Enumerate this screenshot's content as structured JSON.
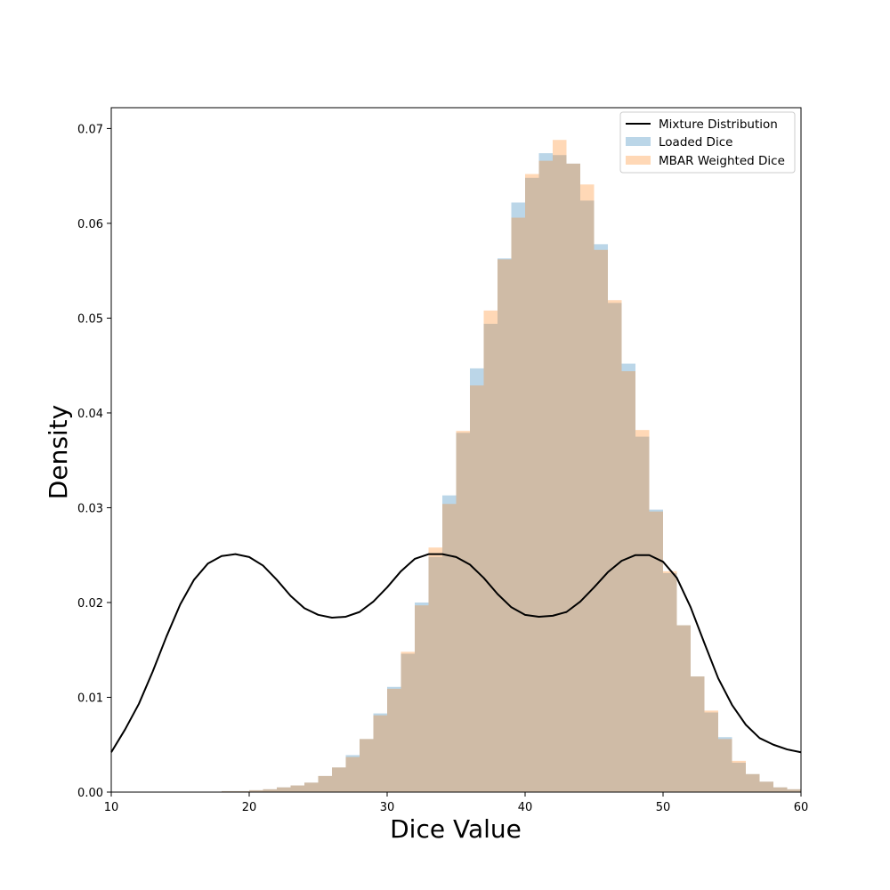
{
  "chart_data": {
    "type": "bar",
    "xlabel": "Dice Value",
    "ylabel": "Density",
    "xlim": [
      10,
      60
    ],
    "ylim": [
      0,
      0.0722
    ],
    "xticks": [
      10,
      20,
      30,
      40,
      50,
      60
    ],
    "yticks": [
      0.0,
      0.01,
      0.02,
      0.03,
      0.04,
      0.05,
      0.06,
      0.07
    ],
    "ytick_labels": [
      "0.00",
      "0.01",
      "0.02",
      "0.03",
      "0.04",
      "0.05",
      "0.06",
      "0.07"
    ],
    "grid": false,
    "legend_position": "top-right",
    "bin_edges": [
      18,
      19,
      20,
      21,
      22,
      23,
      24,
      25,
      26,
      27,
      28,
      29,
      30,
      31,
      32,
      33,
      34,
      35,
      36,
      37,
      38,
      39,
      40,
      41,
      42,
      43,
      44,
      45,
      46,
      47,
      48,
      49,
      50,
      51,
      52,
      53,
      54,
      55,
      56,
      57,
      58,
      59,
      60
    ],
    "series": [
      {
        "name": "Mixture Distribution",
        "kind": "line",
        "color": "#000000",
        "x": [
          10,
          11,
          12,
          13,
          14,
          15,
          16,
          17,
          18,
          19,
          20,
          21,
          22,
          23,
          24,
          25,
          26,
          27,
          28,
          29,
          30,
          31,
          32,
          33,
          34,
          35,
          36,
          37,
          38,
          39,
          40,
          41,
          42,
          43,
          44,
          45,
          46,
          47,
          48,
          49,
          50,
          51,
          52,
          53,
          54,
          55,
          56,
          57,
          58,
          59,
          60
        ],
        "y": [
          0.0042,
          0.0066,
          0.0093,
          0.0127,
          0.0164,
          0.0198,
          0.0224,
          0.0241,
          0.0249,
          0.0251,
          0.0248,
          0.0239,
          0.0224,
          0.0207,
          0.0194,
          0.0187,
          0.0184,
          0.0185,
          0.019,
          0.0201,
          0.0216,
          0.0233,
          0.0246,
          0.0251,
          0.0251,
          0.0248,
          0.024,
          0.0226,
          0.0209,
          0.0195,
          0.0187,
          0.0185,
          0.0186,
          0.019,
          0.0201,
          0.0216,
          0.0232,
          0.0244,
          0.025,
          0.025,
          0.0243,
          0.0226,
          0.0195,
          0.0157,
          0.012,
          0.0092,
          0.0071,
          0.0057,
          0.005,
          0.0045,
          0.0042
        ]
      },
      {
        "name": "Loaded Dice",
        "kind": "histogram",
        "color": "#1f77b4",
        "values": [
          0.0001,
          0.0001,
          0.0002,
          0.0003,
          0.0005,
          0.0007,
          0.001,
          0.0017,
          0.0026,
          0.0039,
          0.0056,
          0.0083,
          0.0111,
          0.0146,
          0.02,
          0.0248,
          0.0313,
          0.0379,
          0.0447,
          0.0494,
          0.0563,
          0.0622,
          0.0648,
          0.0674,
          0.0672,
          0.0663,
          0.0624,
          0.0578,
          0.0516,
          0.0452,
          0.0375,
          0.0298,
          0.0231,
          0.0176,
          0.0122,
          0.0084,
          0.0058,
          0.0031,
          0.0019,
          0.0011,
          0.0005,
          0.0003
        ]
      },
      {
        "name": "MBAR Weighted Dice",
        "kind": "histogram",
        "color": "#ff7f0e",
        "values": [
          0.0001,
          0.0001,
          0.0002,
          0.0003,
          0.0005,
          0.0007,
          0.001,
          0.0017,
          0.0026,
          0.0037,
          0.0056,
          0.0081,
          0.0109,
          0.0148,
          0.0197,
          0.0258,
          0.0304,
          0.0381,
          0.0429,
          0.0508,
          0.0562,
          0.0606,
          0.0652,
          0.0666,
          0.0688,
          0.0663,
          0.0641,
          0.0572,
          0.0519,
          0.0444,
          0.0382,
          0.0296,
          0.0233,
          0.0176,
          0.0122,
          0.0086,
          0.0056,
          0.0033,
          0.0019,
          0.0011,
          0.0005,
          0.0003
        ]
      }
    ]
  }
}
